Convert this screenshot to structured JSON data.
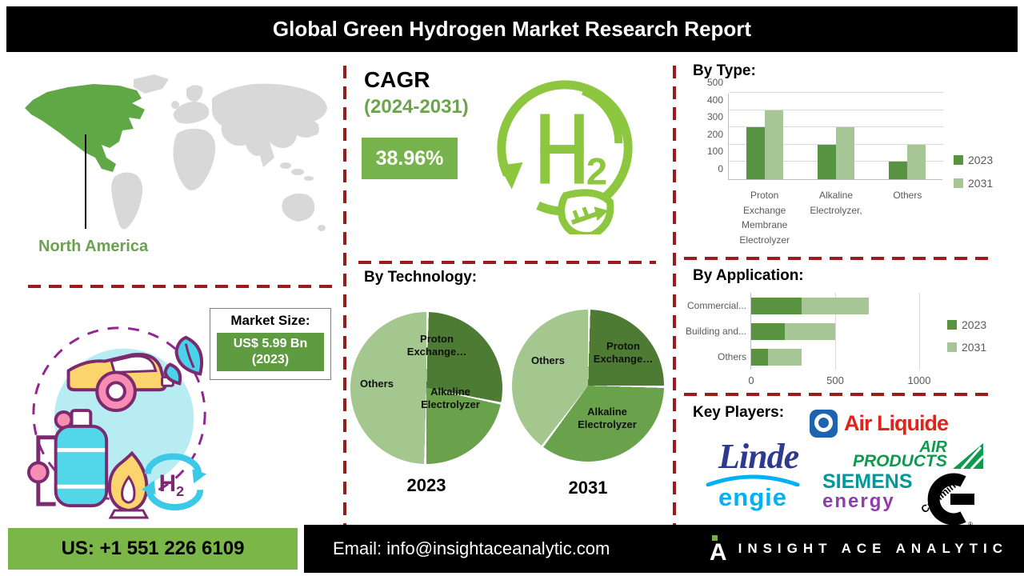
{
  "title": "Global Green Hydrogen Market Research Report",
  "map": {
    "region_label": "North America"
  },
  "cagr": {
    "heading": "CAGR",
    "period": "(2024-2031)",
    "value": "38.96%"
  },
  "market_size": {
    "heading": "Market Size:",
    "value": "US$ 5.99 Bn",
    "year": "(2023)"
  },
  "sections": {
    "by_type": "By Type:",
    "by_technology": "By Technology:",
    "by_application": "By Application:",
    "key_players": "Key Players:"
  },
  "chart_data": [
    {
      "id": "by_type",
      "type": "bar",
      "title": "By Type:",
      "categories": [
        "Proton Exchange Membrane Electrolyzer",
        "Alkaline Electrolyzer,",
        "Others"
      ],
      "series": [
        {
          "name": "2023",
          "color": "#579340",
          "values": [
            300,
            200,
            100
          ]
        },
        {
          "name": "2031",
          "color": "#a6c795",
          "values": [
            400,
            300,
            200
          ]
        }
      ],
      "ylim": [
        0,
        500
      ],
      "yticks": [
        0,
        100,
        200,
        300,
        400,
        500
      ],
      "grid": true,
      "legend_position": "right"
    },
    {
      "id": "by_technology_2023",
      "type": "pie",
      "title": "2023",
      "slices": [
        {
          "label": "Proton Exchange…",
          "pct": 28,
          "color": "#4e7b33"
        },
        {
          "label": "Alkaline Electrolyzer",
          "pct": 22,
          "color": "#69a24b"
        },
        {
          "label": "Others",
          "pct": 50,
          "color": "#a4c78f"
        }
      ]
    },
    {
      "id": "by_technology_2031",
      "type": "pie",
      "title": "2031",
      "slices": [
        {
          "label": "Proton Exchange…",
          "pct": 25,
          "color": "#4e7b33"
        },
        {
          "label": "Alkaline Electrolyzer",
          "pct": 35,
          "color": "#69a24b"
        },
        {
          "label": "Others",
          "pct": 40,
          "color": "#a4c78f"
        }
      ]
    },
    {
      "id": "by_application",
      "type": "bar",
      "orientation": "horizontal",
      "stacked": true,
      "categories": [
        "Commercial...",
        "Building and...",
        "Others"
      ],
      "series": [
        {
          "name": "2023",
          "color": "#579340",
          "values": [
            300,
            200,
            100
          ]
        },
        {
          "name": "2031",
          "color": "#a6c795",
          "values": [
            400,
            300,
            200
          ]
        }
      ],
      "xlim": [
        0,
        1000
      ],
      "xticks": [
        0,
        500,
        1000
      ],
      "grid": true,
      "legend_position": "right"
    }
  ],
  "key_players": {
    "heading": "Key Players:",
    "logos": {
      "air_liquide": "Air Liquide",
      "linde": "Linde",
      "air_products_1": "AIR",
      "air_products_2": "PRODUCTS",
      "engie": "ENGIE",
      "siemens": "SIEMENS",
      "siemens_energy": "energy",
      "cummins": "Cummins"
    }
  },
  "footer": {
    "phone": "US: +1 551 226 6109",
    "email": "Email: info@insightaceanalytic.com",
    "brand": "INSIGHT ACE ANALYTIC"
  }
}
